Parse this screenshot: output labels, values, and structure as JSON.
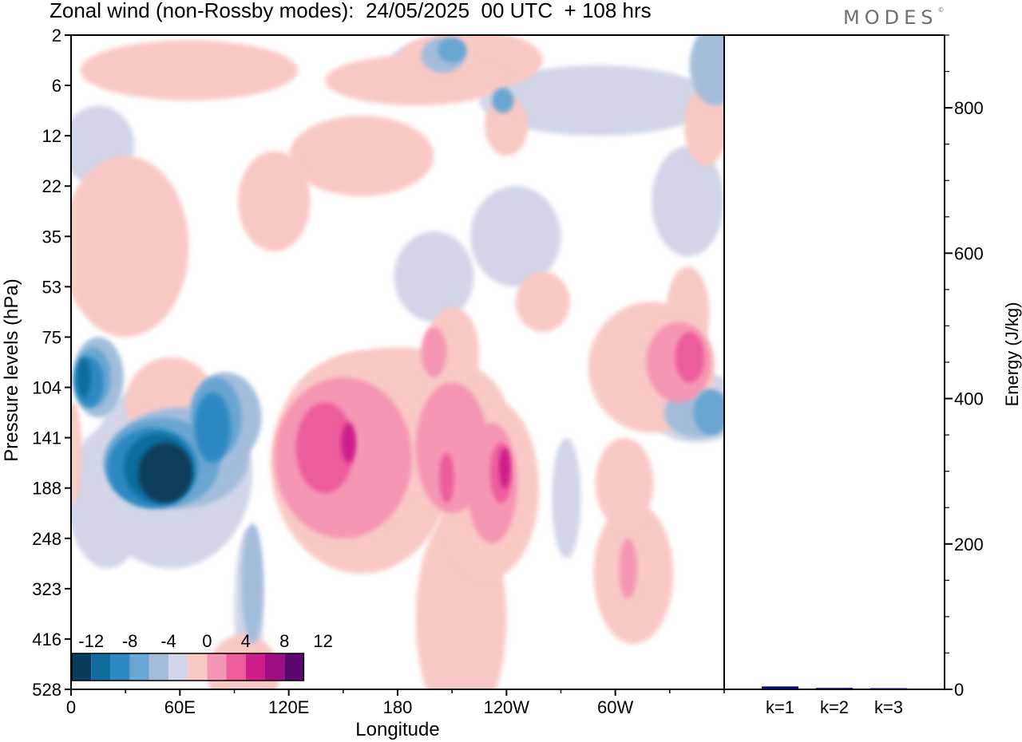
{
  "title": "Zonal wind (non-Rossby modes):  24/05/2025  00 UTC  + 108 hrs",
  "logo": "MODES",
  "colors": {
    "negative": [
      "#083c5a",
      "#0f6d9e",
      "#2f89c2",
      "#69a6d1",
      "#a3bddb",
      "#d2d6e8"
    ],
    "neutral": "#ffffff",
    "positive": [
      "#f9c9c6",
      "#f596b4",
      "#ed5c9b",
      "#cf1d8a",
      "#9e0f85",
      "#5c076e"
    ],
    "bar": "#0b0b6e"
  },
  "chart_data": [
    {
      "type": "heatmap",
      "title": "Zonal wind (non-Rossby modes):  24/05/2025  00 UTC  + 108 hrs",
      "xlabel": "Longitude",
      "ylabel": "Pressure levels (hPa)",
      "x_ticks": [
        "0",
        "60E",
        "120E",
        "180",
        "120W",
        "60W"
      ],
      "x_tick_values": [
        0,
        60,
        120,
        180,
        240,
        300
      ],
      "xlim": [
        0,
        360
      ],
      "y_ticks": [
        "2",
        "6",
        "12",
        "22",
        "35",
        "53",
        "75",
        "104",
        "141",
        "188",
        "248",
        "323",
        "416",
        "528"
      ],
      "colorbar": {
        "labels": [
          "-12",
          "-8",
          "-4",
          "0",
          "4",
          "8",
          "12"
        ],
        "levels": [
          -14,
          -12,
          -10,
          -8,
          -6,
          -4,
          -2,
          2,
          4,
          6,
          8,
          10,
          12,
          14
        ]
      },
      "features": [
        {
          "lon": [
            25,
            80
          ],
          "level": "141",
          "value": -14
        },
        {
          "lon": [
            0,
            15
          ],
          "level": "75-104",
          "value": -10
        },
        {
          "lon": [
            70,
            95
          ],
          "level": "104-141",
          "value": -8
        },
        {
          "lon": [
            135,
            170
          ],
          "level": "141",
          "value": 8
        },
        {
          "lon": [
            225,
            240
          ],
          "level": "141-188",
          "value": 8
        },
        {
          "lon": [
            330,
            355
          ],
          "level": "53-75",
          "value": 6
        },
        {
          "lon": [
            330,
            360
          ],
          "level": "104",
          "value": -8
        },
        {
          "lon": [
            185,
            200
          ],
          "level": "75",
          "value": 6
        },
        {
          "lon": [
            305,
            320
          ],
          "level": "323",
          "value": 6
        },
        {
          "lon": [
            95,
            105
          ],
          "level": "323-416",
          "value": -4
        },
        {
          "lon": [
            235,
            248
          ],
          "level": "12",
          "value": 6
        },
        {
          "lon": [
            345,
            360
          ],
          "level": "2-6",
          "value": -6
        }
      ]
    },
    {
      "type": "bar",
      "categories": [
        "k=1",
        "k=2",
        "k=3"
      ],
      "values": [
        4,
        2,
        1
      ],
      "ylabel": "Energy (J/kg)",
      "ylim": [
        0,
        900
      ],
      "y_ticks": [
        0,
        200,
        400,
        600,
        800
      ]
    }
  ]
}
